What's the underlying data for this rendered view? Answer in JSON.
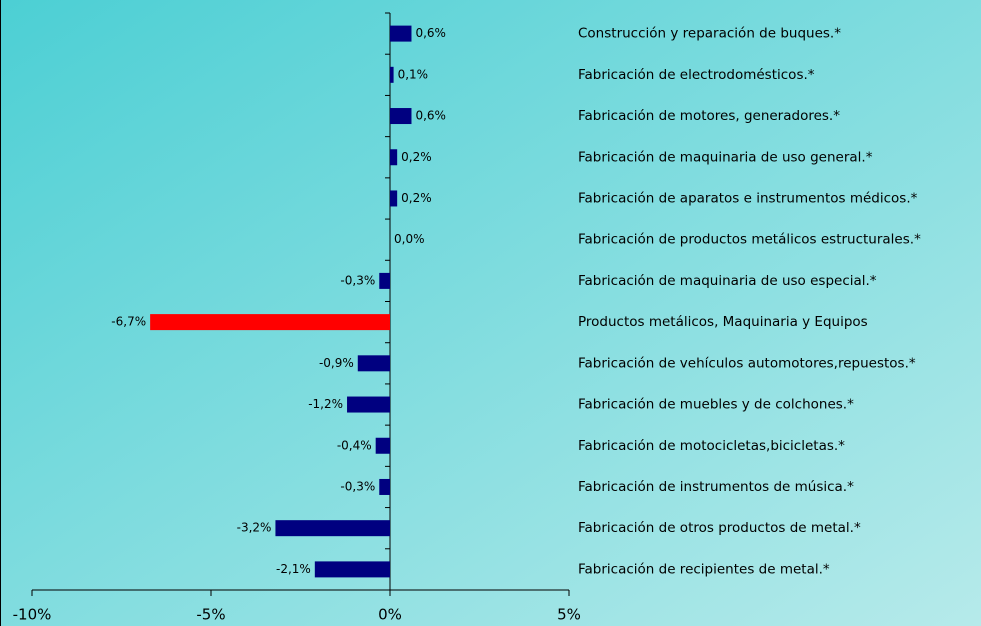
{
  "chart_data": {
    "type": "barh",
    "categories": [
      "Construcción y reparación de buques.*",
      "Fabricación de electrodomésticos.*",
      "Fabricación de motores, generadores.*",
      "Fabricación de maquinaria de uso general.*",
      "Fabricación de aparatos e instrumentos médicos.*",
      "Fabricación de productos metálicos estructurales.*",
      "Fabricación de maquinaria de uso especial.*",
      "Productos metálicos, Maquinaria y Equipos",
      "Fabricación de vehículos automotores,repuestos.*",
      "Fabricación de muebles y de colchones.*",
      "Fabricación de motocicletas,bicicletas.*",
      "Fabricación de instrumentos de música.*",
      "Fabricación de otros productos de metal.*",
      "Fabricación de recipientes de metal.*"
    ],
    "values": [
      0.6,
      0.1,
      0.6,
      0.2,
      0.2,
      0.0,
      -0.3,
      -6.7,
      -0.9,
      -1.2,
      -0.4,
      -0.3,
      -3.2,
      -2.1
    ],
    "value_labels": [
      "0,6%",
      "0,1%",
      "0,6%",
      "0,2%",
      "0,2%",
      "0,0%",
      "-0,3%",
      "-6,7%",
      "-0,9%",
      "-1,2%",
      "-0,4%",
      "-0,3%",
      "-3,2%",
      "-2,1%"
    ],
    "colors": [
      "#000080",
      "#000080",
      "#000080",
      "#000080",
      "#000080",
      "#000080",
      "#000080",
      "#ff0000",
      "#000080",
      "#000080",
      "#000080",
      "#000080",
      "#000080",
      "#000080"
    ],
    "xlim": [
      -10,
      5
    ],
    "xticks": [
      {
        "value": -10,
        "label": "-10%"
      },
      {
        "value": -5,
        "label": "-5%"
      },
      {
        "value": 0,
        "label": "0%"
      },
      {
        "value": 5,
        "label": "5%"
      }
    ]
  }
}
